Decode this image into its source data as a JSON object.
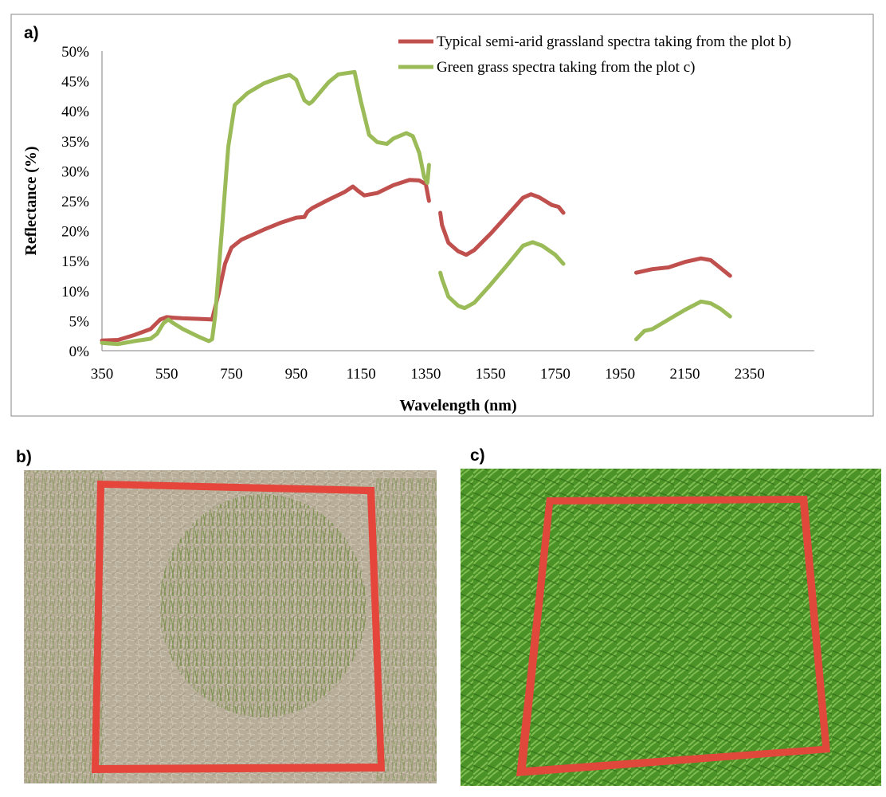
{
  "figure": {
    "panel_a_label": "a)",
    "panel_b_label": "b)",
    "panel_c_label": "c)"
  },
  "photos": {
    "b": {
      "description_colors": {
        "soil": "#b9ad98",
        "grass": "#6f8a43",
        "frame": "#e5453a"
      }
    },
    "c": {
      "description_colors": {
        "grass": "#4e9a2a",
        "frame": "#e0483c"
      }
    }
  },
  "chart_data": {
    "type": "line",
    "title": "",
    "xlabel": "Wavelength (nm)",
    "ylabel": "Reflectance (%)",
    "xlim": [
      350,
      2550
    ],
    "ylim": [
      0,
      50
    ],
    "xticks": [
      350,
      550,
      750,
      950,
      1150,
      1350,
      1550,
      1750,
      1950,
      2150,
      2350
    ],
    "yticks": [
      "0%",
      "5%",
      "10%",
      "15%",
      "20%",
      "25%",
      "30%",
      "35%",
      "40%",
      "45%",
      "50%"
    ],
    "grid": false,
    "legend_position": "top-right",
    "series": [
      {
        "name": "Typical semi-arid grassland spectra taking from the plot b)",
        "color": "#c0504d",
        "segments": [
          [
            [
              350,
              1.7
            ],
            [
              400,
              1.8
            ],
            [
              450,
              2.6
            ],
            [
              500,
              3.6
            ],
            [
              530,
              5.2
            ],
            [
              550,
              5.6
            ],
            [
              570,
              5.5
            ],
            [
              600,
              5.4
            ],
            [
              650,
              5.3
            ],
            [
              690,
              5.2
            ],
            [
              710,
              9.5
            ],
            [
              730,
              14.5
            ],
            [
              750,
              17.2
            ],
            [
              780,
              18.5
            ],
            [
              850,
              20.2
            ],
            [
              900,
              21.3
            ],
            [
              950,
              22.2
            ],
            [
              975,
              22.3
            ],
            [
              985,
              23.2
            ],
            [
              1000,
              23.8
            ],
            [
              1050,
              25.2
            ],
            [
              1100,
              26.5
            ],
            [
              1125,
              27.4
            ],
            [
              1140,
              26.7
            ],
            [
              1160,
              25.9
            ],
            [
              1200,
              26.3
            ],
            [
              1250,
              27.6
            ],
            [
              1300,
              28.5
            ],
            [
              1330,
              28.4
            ],
            [
              1350,
              27.8
            ],
            [
              1360,
              25.0
            ]
          ],
          [
            [
              1395,
              23.0
            ],
            [
              1400,
              21.0
            ],
            [
              1420,
              18.0
            ],
            [
              1450,
              16.6
            ],
            [
              1475,
              16.0
            ],
            [
              1500,
              16.8
            ],
            [
              1550,
              19.5
            ],
            [
              1600,
              22.5
            ],
            [
              1650,
              25.5
            ],
            [
              1675,
              26.1
            ],
            [
              1700,
              25.6
            ],
            [
              1740,
              24.3
            ],
            [
              1760,
              24.0
            ],
            [
              1775,
              23.0
            ]
          ],
          [
            [
              2000,
              13.0
            ],
            [
              2050,
              13.6
            ],
            [
              2100,
              13.9
            ],
            [
              2150,
              14.8
            ],
            [
              2200,
              15.4
            ],
            [
              2230,
              15.1
            ],
            [
              2260,
              13.8
            ],
            [
              2290,
              12.5
            ]
          ]
        ]
      },
      {
        "name": "Green grass spectra taking from the plot c)",
        "color": "#9bbb59",
        "segments": [
          [
            [
              350,
              1.3
            ],
            [
              400,
              1.1
            ],
            [
              450,
              1.6
            ],
            [
              500,
              2.0
            ],
            [
              520,
              2.8
            ],
            [
              540,
              4.6
            ],
            [
              555,
              5.2
            ],
            [
              570,
              4.6
            ],
            [
              600,
              3.6
            ],
            [
              650,
              2.3
            ],
            [
              680,
              1.6
            ],
            [
              690,
              1.9
            ],
            [
              700,
              6.0
            ],
            [
              720,
              20.0
            ],
            [
              740,
              34.0
            ],
            [
              760,
              41.0
            ],
            [
              800,
              43.0
            ],
            [
              850,
              44.6
            ],
            [
              900,
              45.6
            ],
            [
              930,
              46.0
            ],
            [
              950,
              45.2
            ],
            [
              975,
              41.8
            ],
            [
              990,
              41.2
            ],
            [
              1000,
              41.6
            ],
            [
              1050,
              44.8
            ],
            [
              1080,
              46.1
            ],
            [
              1130,
              46.5
            ],
            [
              1150,
              41.5
            ],
            [
              1175,
              36.0
            ],
            [
              1200,
              34.8
            ],
            [
              1230,
              34.5
            ],
            [
              1250,
              35.4
            ],
            [
              1290,
              36.3
            ],
            [
              1310,
              35.8
            ],
            [
              1330,
              33.0
            ],
            [
              1345,
              29.0
            ],
            [
              1355,
              28.0
            ],
            [
              1360,
              31.0
            ]
          ],
          [
            [
              1395,
              13.0
            ],
            [
              1400,
              12.0
            ],
            [
              1420,
              9.0
            ],
            [
              1450,
              7.5
            ],
            [
              1470,
              7.1
            ],
            [
              1500,
              8.0
            ],
            [
              1550,
              11.0
            ],
            [
              1600,
              14.2
            ],
            [
              1650,
              17.5
            ],
            [
              1680,
              18.1
            ],
            [
              1710,
              17.5
            ],
            [
              1750,
              16.0
            ],
            [
              1775,
              14.5
            ]
          ],
          [
            [
              2000,
              1.9
            ],
            [
              2025,
              3.3
            ],
            [
              2050,
              3.6
            ],
            [
              2100,
              5.2
            ],
            [
              2150,
              6.8
            ],
            [
              2200,
              8.2
            ],
            [
              2230,
              7.9
            ],
            [
              2260,
              7.0
            ],
            [
              2290,
              5.7
            ]
          ]
        ]
      }
    ]
  }
}
